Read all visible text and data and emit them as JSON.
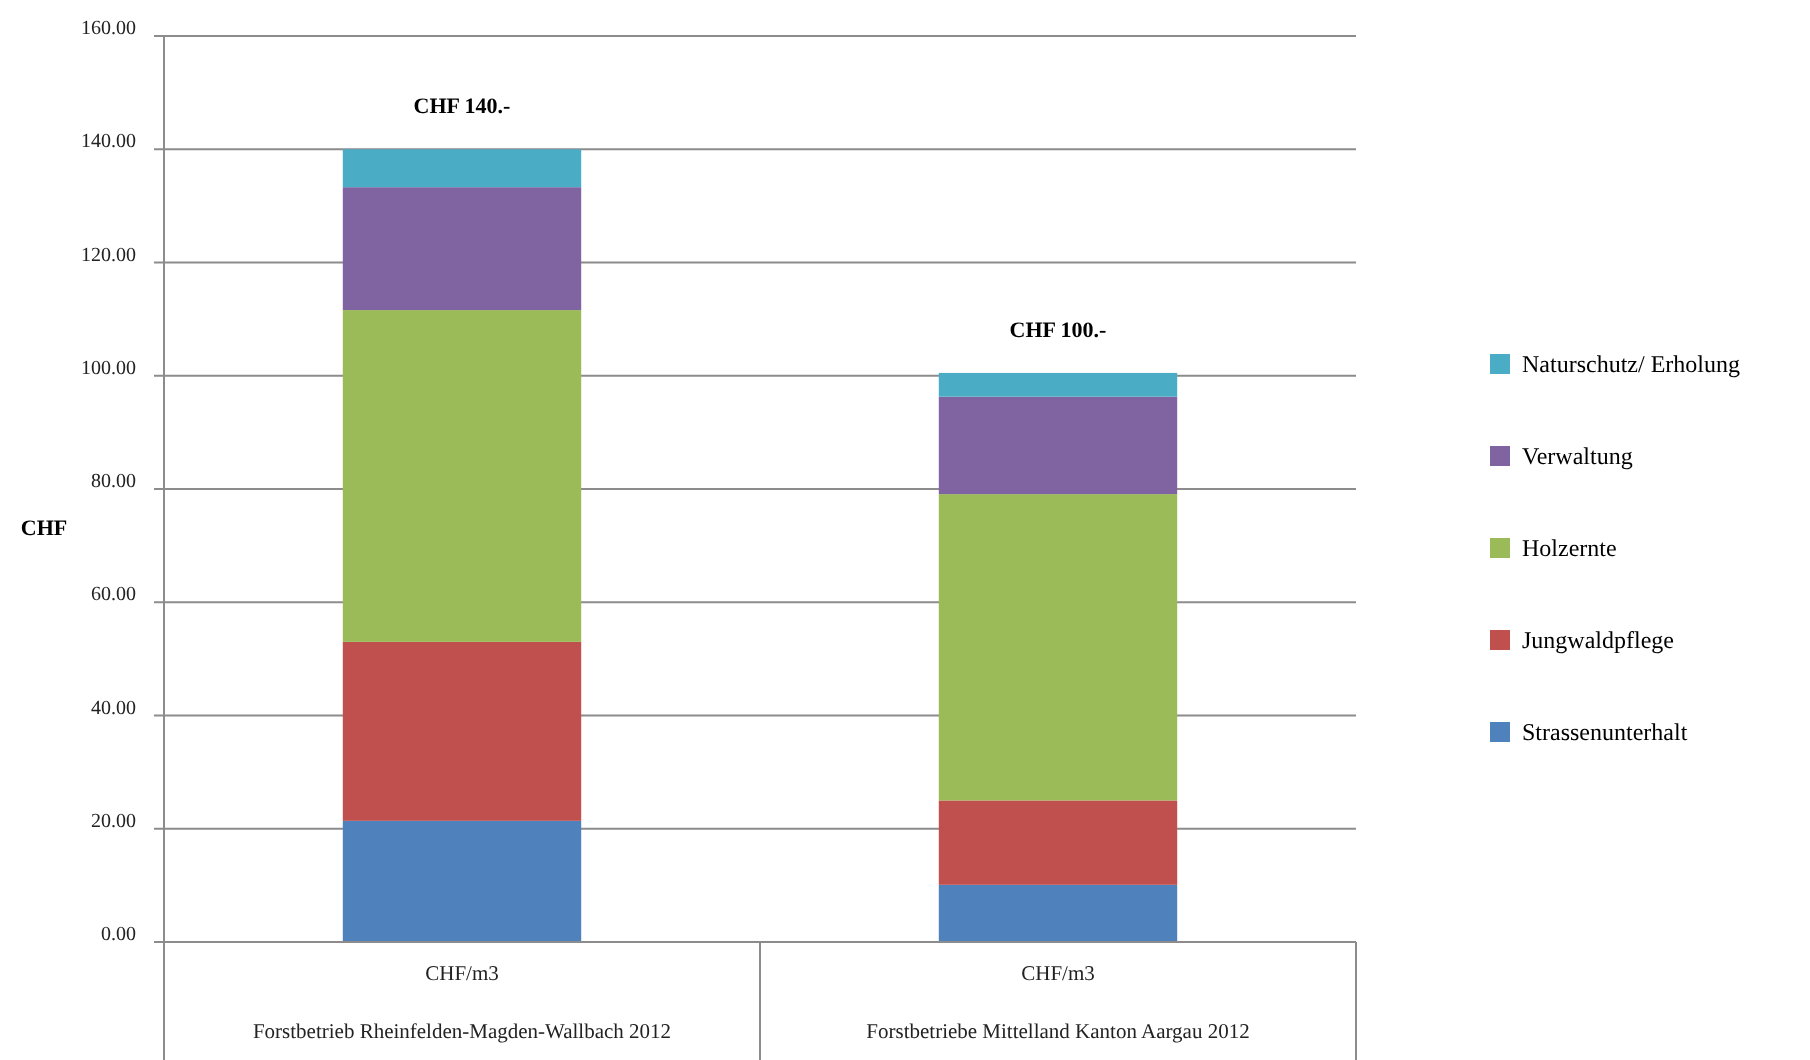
{
  "chart_data": {
    "type": "bar",
    "stacked": true,
    "ylabel": "CHF",
    "categories": [
      "CHF/m3\nForstbetrieb Rheinfelden-Magden-Wallbach 2012",
      "CHF/m3\nForstbetriebe Mittelland Kanton Aargau 2012"
    ],
    "series": [
      {
        "name": "Strassenunterhalt",
        "color": "#4f81bd",
        "values": [
          21.4,
          10.1
        ]
      },
      {
        "name": "Jungwaldpflege",
        "color": "#c0504d",
        "values": [
          31.6,
          14.9
        ]
      },
      {
        "name": "Holzernte",
        "color": "#9bbb59",
        "values": [
          58.6,
          54.1
        ]
      },
      {
        "name": "Verwaltung",
        "color": "#8064a2",
        "values": [
          21.7,
          17.2
        ]
      },
      {
        "name": "Naturschutz/ Erholung",
        "color": "#4bacc6",
        "values": [
          6.7,
          4.2
        ]
      }
    ],
    "totals": [
      "CHF 140.-",
      "CHF 100.-"
    ],
    "ylim": [
      0,
      160
    ],
    "yticks": [
      {
        "value": 0,
        "label": "0.00"
      },
      {
        "value": 20,
        "label": "20.00"
      },
      {
        "value": 40,
        "label": "40.00"
      },
      {
        "value": 60,
        "label": "60.00"
      },
      {
        "value": 80,
        "label": "80.00"
      },
      {
        "value": 100,
        "label": "100.00"
      },
      {
        "value": 120,
        "label": "120.00"
      },
      {
        "value": 140,
        "label": "140.00"
      },
      {
        "value": 160,
        "label": "160.00"
      }
    ],
    "grid": "y",
    "legend": "right"
  }
}
